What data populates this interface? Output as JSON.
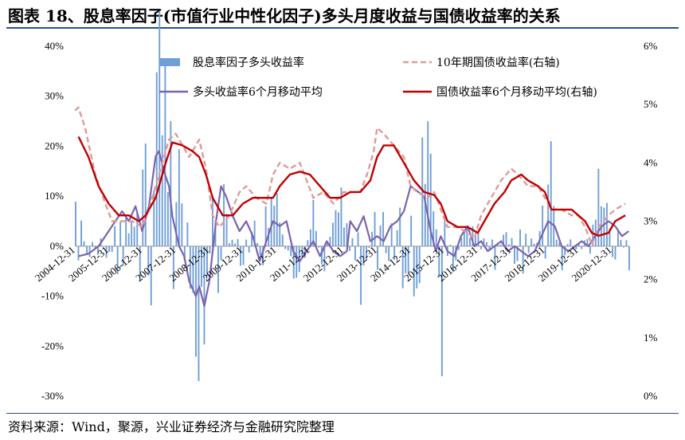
{
  "title": "图表 18、股息率因子(市值行业中性化因子)多头月度收益与国债收益率的关系",
  "source": "资料来源：Wind，聚源，兴业证券经济与金融研究院整理",
  "colors": {
    "bar": "#6f9fd8",
    "avg": "#7b63b0",
    "bond": "#c00000",
    "bond10": "#e09a9a",
    "rule": "#2e4f8a"
  },
  "chart_data": {
    "type": "bar",
    "legend_placement": "top",
    "grid": false,
    "x_start": "2004-12",
    "x_end": "2021-06",
    "xtick_labels": [
      "2004-12-31",
      "2005-12-31",
      "2006-12-31",
      "2007-12-31",
      "2008-12-31",
      "2009-12-31",
      "2010-12-31",
      "2011-12-31",
      "2012-12-31",
      "2013-12-31",
      "2014-12-31",
      "2015-12-31",
      "2016-12-31",
      "2017-12-31",
      "2018-12-31",
      "2019-12-31",
      "2020-12-31"
    ],
    "y_left": {
      "min": -0.3,
      "max": 0.4,
      "ticks": [
        "40%",
        "30%",
        "20%",
        "10%",
        "0%",
        "-10%",
        "-20%",
        "-30%"
      ]
    },
    "y_right": {
      "min": 0.0,
      "max": 0.06,
      "ticks": [
        "6%",
        "5%",
        "4%",
        "3%",
        "2%",
        "1%",
        "0%"
      ]
    },
    "series": [
      {
        "name": "股息率因子多头收益率",
        "kind": "bar",
        "axis": "left",
        "anchors": [
          [
            2005.0,
            0.1
          ],
          [
            2005.3,
            -0.04
          ],
          [
            2005.6,
            0.03
          ],
          [
            2005.9,
            -0.03
          ],
          [
            2006.2,
            0.1
          ],
          [
            2006.5,
            0.05
          ],
          [
            2006.8,
            0.12
          ],
          [
            2007.1,
            0.2
          ],
          [
            2007.4,
            0.35
          ],
          [
            2007.7,
            0.1
          ],
          [
            2008.0,
            0.15
          ],
          [
            2008.2,
            -0.06
          ],
          [
            2008.4,
            -0.15
          ],
          [
            2008.6,
            -0.25
          ],
          [
            2008.8,
            -0.18
          ],
          [
            2009.0,
            0.1
          ],
          [
            2009.3,
            0.13
          ],
          [
            2009.6,
            -0.05
          ],
          [
            2009.9,
            0.08
          ],
          [
            2010.2,
            -0.1
          ],
          [
            2010.5,
            0.08
          ],
          [
            2010.8,
            0.12
          ],
          [
            2011.1,
            0.05
          ],
          [
            2011.4,
            -0.08
          ],
          [
            2011.7,
            -0.04
          ],
          [
            2012.0,
            0.07
          ],
          [
            2012.3,
            -0.06
          ],
          [
            2012.6,
            0.05
          ],
          [
            2012.9,
            0.1
          ],
          [
            2013.2,
            -0.04
          ],
          [
            2013.5,
            -0.1
          ],
          [
            2013.8,
            0.07
          ],
          [
            2014.1,
            0.05
          ],
          [
            2014.4,
            0.06
          ],
          [
            2014.7,
            0.11
          ],
          [
            2015.0,
            0.13
          ],
          [
            2015.3,
            0.2
          ],
          [
            2015.5,
            0.24
          ],
          [
            2015.7,
            -0.2
          ],
          [
            2015.9,
            0.1
          ],
          [
            2016.2,
            -0.06
          ],
          [
            2016.5,
            0.04
          ],
          [
            2016.8,
            0.03
          ],
          [
            2017.1,
            0.02
          ],
          [
            2017.4,
            -0.04
          ],
          [
            2017.7,
            0.04
          ],
          [
            2017.9,
            -0.03
          ],
          [
            2018.2,
            -0.06
          ],
          [
            2018.5,
            -0.03
          ],
          [
            2018.8,
            0.05
          ],
          [
            2019.1,
            0.12
          ],
          [
            2019.4,
            -0.05
          ],
          [
            2019.7,
            0.02
          ],
          [
            2019.9,
            -0.03
          ],
          [
            2020.2,
            0.04
          ],
          [
            2020.5,
            0.14
          ],
          [
            2020.8,
            0.05
          ],
          [
            2021.1,
            0.03
          ],
          [
            2021.4,
            -0.04
          ]
        ],
        "spikes": [
          [
            2007.55,
            0.37
          ],
          [
            2007.75,
            0.25
          ],
          [
            2008.58,
            -0.27
          ],
          [
            2015.45,
            0.25
          ],
          [
            2015.85,
            -0.26
          ],
          [
            2019.05,
            0.21
          ],
          [
            2020.5,
            0.155
          ]
        ]
      },
      {
        "name": "多头收益率6个月移动平均",
        "kind": "line",
        "axis": "left",
        "points": [
          [
            2005.0,
            -0.02
          ],
          [
            2005.3,
            -0.015
          ],
          [
            2005.6,
            0.0
          ],
          [
            2005.9,
            0.03
          ],
          [
            2006.1,
            0.05
          ],
          [
            2006.3,
            0.07
          ],
          [
            2006.5,
            0.05
          ],
          [
            2006.7,
            0.08
          ],
          [
            2006.9,
            0.03
          ],
          [
            2007.1,
            0.08
          ],
          [
            2007.3,
            0.18
          ],
          [
            2007.4,
            0.19
          ],
          [
            2007.55,
            0.15
          ],
          [
            2007.7,
            0.12
          ],
          [
            2007.8,
            0.06
          ],
          [
            2008.0,
            0.0
          ],
          [
            2008.15,
            -0.02
          ],
          [
            2008.3,
            -0.07
          ],
          [
            2008.5,
            -0.1
          ],
          [
            2008.6,
            -0.08
          ],
          [
            2008.75,
            -0.12
          ],
          [
            2008.9,
            -0.07
          ],
          [
            2009.1,
            0.05
          ],
          [
            2009.25,
            0.12
          ],
          [
            2009.4,
            0.1
          ],
          [
            2009.6,
            0.06
          ],
          [
            2009.8,
            0.03
          ],
          [
            2010.0,
            0.05
          ],
          [
            2010.2,
            0.02
          ],
          [
            2010.4,
            -0.03
          ],
          [
            2010.6,
            0.01
          ],
          [
            2010.8,
            0.05
          ],
          [
            2011.0,
            0.04
          ],
          [
            2011.2,
            0.05
          ],
          [
            2011.4,
            -0.01
          ],
          [
            2011.6,
            -0.03
          ],
          [
            2011.8,
            -0.01
          ],
          [
            2012.0,
            0.01
          ],
          [
            2012.2,
            -0.02
          ],
          [
            2012.4,
            0.01
          ],
          [
            2012.6,
            -0.01
          ],
          [
            2012.8,
            -0.02
          ],
          [
            2013.0,
            -0.01
          ],
          [
            2013.1,
            0.05
          ],
          [
            2013.3,
            0.03
          ],
          [
            2013.5,
            0.06
          ],
          [
            2013.7,
            0.01
          ],
          [
            2013.9,
            0.02
          ],
          [
            2014.1,
            0.01
          ],
          [
            2014.3,
            0.04
          ],
          [
            2014.5,
            0.05
          ],
          [
            2014.7,
            0.07
          ],
          [
            2014.9,
            0.12
          ],
          [
            2015.1,
            0.11
          ],
          [
            2015.3,
            0.1
          ],
          [
            2015.5,
            0.03
          ],
          [
            2015.65,
            -0.01
          ],
          [
            2015.8,
            0.02
          ],
          [
            2016.0,
            -0.01
          ],
          [
            2016.2,
            -0.02
          ],
          [
            2016.4,
            0.02
          ],
          [
            2016.6,
            0.04
          ],
          [
            2016.8,
            0.0
          ],
          [
            2017.0,
            0.01
          ],
          [
            2017.2,
            -0.01
          ],
          [
            2017.4,
            0.0
          ],
          [
            2017.6,
            0.01
          ],
          [
            2017.8,
            -0.01
          ],
          [
            2018.0,
            0.0
          ],
          [
            2018.2,
            -0.01
          ],
          [
            2018.4,
            -0.02
          ],
          [
            2018.6,
            -0.01
          ],
          [
            2018.8,
            0.02
          ],
          [
            2019.0,
            0.05
          ],
          [
            2019.2,
            0.04
          ],
          [
            2019.4,
            0.0
          ],
          [
            2019.6,
            -0.01
          ],
          [
            2019.8,
            0.0
          ],
          [
            2020.0,
            0.01
          ],
          [
            2020.2,
            0.0
          ],
          [
            2020.4,
            0.02
          ],
          [
            2020.6,
            0.04
          ],
          [
            2020.8,
            0.05
          ],
          [
            2021.0,
            0.04
          ],
          [
            2021.2,
            0.02
          ],
          [
            2021.4,
            0.03
          ]
        ]
      },
      {
        "name": "10年期国债收益率(右轴)",
        "kind": "line",
        "axis": "right",
        "style": "dashed",
        "points": [
          [
            2004.9,
            0.049
          ],
          [
            2005.0,
            0.0495
          ],
          [
            2005.2,
            0.046
          ],
          [
            2005.5,
            0.038
          ],
          [
            2005.8,
            0.033
          ],
          [
            2006.0,
            0.03
          ],
          [
            2006.3,
            0.03
          ],
          [
            2006.6,
            0.03
          ],
          [
            2006.9,
            0.029
          ],
          [
            2007.1,
            0.032
          ],
          [
            2007.4,
            0.038
          ],
          [
            2007.7,
            0.044
          ],
          [
            2007.9,
            0.045
          ],
          [
            2008.1,
            0.043
          ],
          [
            2008.3,
            0.041
          ],
          [
            2008.6,
            0.044
          ],
          [
            2008.8,
            0.039
          ],
          [
            2009.0,
            0.031
          ],
          [
            2009.2,
            0.029
          ],
          [
            2009.5,
            0.031
          ],
          [
            2009.8,
            0.035
          ],
          [
            2010.0,
            0.036
          ],
          [
            2010.3,
            0.034
          ],
          [
            2010.6,
            0.033
          ],
          [
            2010.8,
            0.038
          ],
          [
            2011.0,
            0.04
          ],
          [
            2011.3,
            0.039
          ],
          [
            2011.6,
            0.04
          ],
          [
            2011.8,
            0.037
          ],
          [
            2012.0,
            0.034
          ],
          [
            2012.3,
            0.035
          ],
          [
            2012.6,
            0.033
          ],
          [
            2012.9,
            0.035
          ],
          [
            2013.2,
            0.035
          ],
          [
            2013.4,
            0.035
          ],
          [
            2013.6,
            0.038
          ],
          [
            2013.8,
            0.042
          ],
          [
            2013.9,
            0.046
          ],
          [
            2014.1,
            0.045
          ],
          [
            2014.4,
            0.043
          ],
          [
            2014.7,
            0.041
          ],
          [
            2014.9,
            0.036
          ],
          [
            2015.1,
            0.035
          ],
          [
            2015.4,
            0.034
          ],
          [
            2015.6,
            0.035
          ],
          [
            2015.8,
            0.032
          ],
          [
            2016.0,
            0.029
          ],
          [
            2016.3,
            0.029
          ],
          [
            2016.6,
            0.028
          ],
          [
            2016.8,
            0.027
          ],
          [
            2017.0,
            0.031
          ],
          [
            2017.3,
            0.034
          ],
          [
            2017.6,
            0.037
          ],
          [
            2017.9,
            0.039
          ],
          [
            2018.1,
            0.038
          ],
          [
            2018.4,
            0.036
          ],
          [
            2018.7,
            0.036
          ],
          [
            2018.9,
            0.034
          ],
          [
            2019.1,
            0.032
          ],
          [
            2019.4,
            0.032
          ],
          [
            2019.7,
            0.031
          ],
          [
            2019.9,
            0.031
          ],
          [
            2020.1,
            0.029
          ],
          [
            2020.3,
            0.026
          ],
          [
            2020.5,
            0.029
          ],
          [
            2020.8,
            0.031
          ],
          [
            2021.0,
            0.032
          ],
          [
            2021.3,
            0.033
          ]
        ]
      },
      {
        "name": "国债收益率6个月移动平均(右轴)",
        "kind": "line",
        "axis": "right",
        "points": [
          [
            2005.0,
            0.0445
          ],
          [
            2005.3,
            0.041
          ],
          [
            2005.6,
            0.036
          ],
          [
            2005.9,
            0.033
          ],
          [
            2006.2,
            0.031
          ],
          [
            2006.5,
            0.031
          ],
          [
            2006.8,
            0.03
          ],
          [
            2007.0,
            0.031
          ],
          [
            2007.3,
            0.034
          ],
          [
            2007.6,
            0.04
          ],
          [
            2007.8,
            0.0435
          ],
          [
            2008.1,
            0.043
          ],
          [
            2008.4,
            0.042
          ],
          [
            2008.6,
            0.041
          ],
          [
            2008.8,
            0.038
          ],
          [
            2009.0,
            0.034
          ],
          [
            2009.3,
            0.031
          ],
          [
            2009.6,
            0.031
          ],
          [
            2009.9,
            0.033
          ],
          [
            2010.2,
            0.034
          ],
          [
            2010.5,
            0.034
          ],
          [
            2010.8,
            0.034
          ],
          [
            2011.0,
            0.036
          ],
          [
            2011.3,
            0.038
          ],
          [
            2011.6,
            0.0385
          ],
          [
            2011.9,
            0.038
          ],
          [
            2012.2,
            0.036
          ],
          [
            2012.5,
            0.034
          ],
          [
            2012.8,
            0.034
          ],
          [
            2013.1,
            0.035
          ],
          [
            2013.4,
            0.035
          ],
          [
            2013.7,
            0.037
          ],
          [
            2013.9,
            0.041
          ],
          [
            2014.1,
            0.043
          ],
          [
            2014.4,
            0.043
          ],
          [
            2014.7,
            0.04
          ],
          [
            2015.0,
            0.037
          ],
          [
            2015.3,
            0.035
          ],
          [
            2015.6,
            0.0345
          ],
          [
            2015.8,
            0.033
          ],
          [
            2016.0,
            0.03
          ],
          [
            2016.3,
            0.029
          ],
          [
            2016.6,
            0.029
          ],
          [
            2016.9,
            0.028
          ],
          [
            2017.1,
            0.03
          ],
          [
            2017.4,
            0.033
          ],
          [
            2017.7,
            0.035
          ],
          [
            2017.9,
            0.037
          ],
          [
            2018.2,
            0.038
          ],
          [
            2018.4,
            0.037
          ],
          [
            2018.7,
            0.036
          ],
          [
            2018.9,
            0.035
          ],
          [
            2019.1,
            0.032
          ],
          [
            2019.4,
            0.032
          ],
          [
            2019.7,
            0.032
          ],
          [
            2019.9,
            0.031
          ],
          [
            2020.1,
            0.03
          ],
          [
            2020.3,
            0.028
          ],
          [
            2020.5,
            0.0275
          ],
          [
            2020.8,
            0.028
          ],
          [
            2021.0,
            0.03
          ],
          [
            2021.3,
            0.031
          ]
        ]
      }
    ]
  }
}
